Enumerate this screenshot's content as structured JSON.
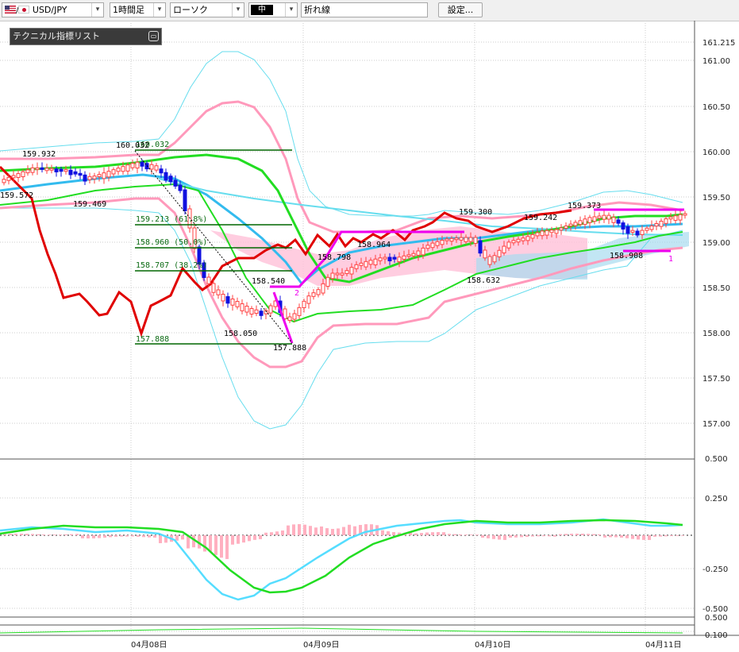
{
  "toolbar": {
    "symbol": "USD/JPY",
    "timeframe": "1時間足",
    "chart_style": "ローソク",
    "line_size": "中",
    "line_type": "折れ線",
    "settings_label": "設定..."
  },
  "indicator_panel": {
    "title": "テクニカル指標リスト"
  },
  "price_axis": [
    "161.215",
    "161.00",
    "160.50",
    "160.00",
    "159.50",
    "159.00",
    "158.50",
    "158.00",
    "157.50",
    "157.00"
  ],
  "macd_axis": [
    "0.500",
    "0.250",
    "-0.250",
    "-0.500"
  ],
  "sub_axis": [
    "0.500",
    "0.100"
  ],
  "x_axis": [
    "04月08日",
    "04月09日",
    "04月10日",
    "04月11日"
  ],
  "price_annotations": {
    "p1": "159.932",
    "p2": "159.572",
    "p3": "159.469",
    "p4": "160.032",
    "p5": "160.032",
    "p6": "158.540",
    "p7": "158.050",
    "p8": "157.888",
    "p9": "158.798",
    "p10": "158.964",
    "p11": "159.300",
    "p12": "159.242",
    "p13": "158.632",
    "p14": "159.373",
    "p15": "158.908",
    "p16": "1",
    "p17": "2"
  },
  "fibonacci": {
    "l1": "159.213 (61.8%)",
    "l2": "158.960 (50.0%)",
    "l3": "158.707 (38.2%)",
    "l4": "157.888",
    "top": "160.032"
  },
  "colors": {
    "up": "#ff4040",
    "down": "#1010e0",
    "ema_red": "#e00000",
    "ma_green": "#00dd00",
    "ma_cyan": "#33bbee",
    "bb_pink": "#ff99bb",
    "bb_cyan": "#66ddee",
    "magenta": "#ee00ee",
    "fib_green": "#006600",
    "hist": "#ffb0c0"
  }
}
